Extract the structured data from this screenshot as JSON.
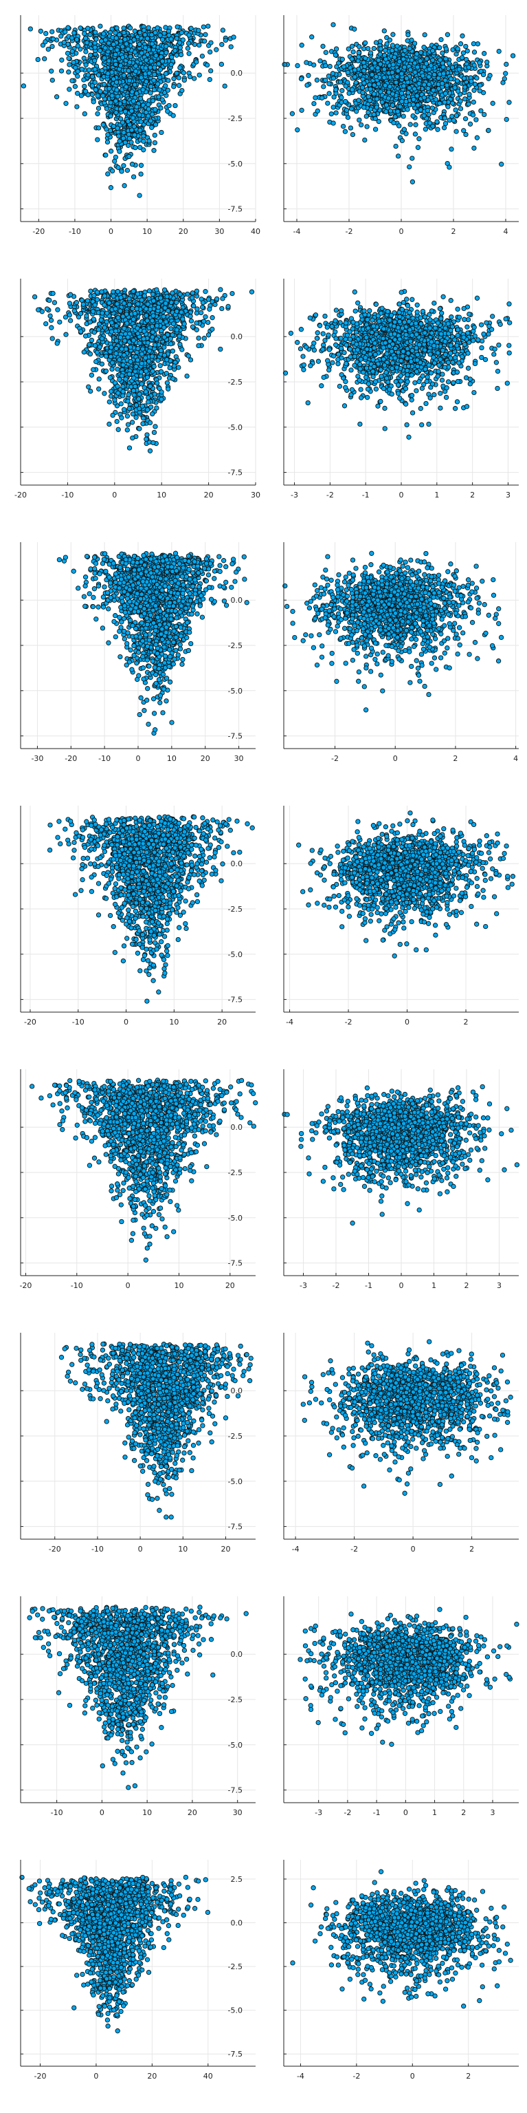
{
  "chart_data": [
    {
      "type": "scatter",
      "marker_color": "#00a8f0",
      "grid": true,
      "xlim": [
        -25,
        40
      ],
      "ylim": [
        -8.2,
        3.2
      ],
      "xticks": [
        -20,
        -10,
        0,
        10,
        20,
        30,
        40
      ],
      "yticks": [
        -7.5,
        -5.0,
        -2.5,
        0.0
      ],
      "ytick_labels_visible": false,
      "dist": "funnel",
      "center": 5,
      "spread": 13,
      "n": 1400
    },
    {
      "type": "scatter",
      "marker_color": "#00a8f0",
      "grid": true,
      "xlim": [
        -4.5,
        4.5
      ],
      "ylim": [
        -8.2,
        3.2
      ],
      "xticks": [
        -4,
        -2,
        0,
        2,
        4
      ],
      "yticks": [
        -7.5,
        -5.0,
        -2.5,
        0.0
      ],
      "ytick_labels": [
        "-7.5",
        "-5.0",
        "-2.5",
        "0.0"
      ],
      "dist": "blob",
      "center": 0,
      "spread": 1.6,
      "n": 1400
    },
    {
      "type": "scatter",
      "marker_color": "#00a8f0",
      "grid": true,
      "xlim": [
        -20,
        30
      ],
      "ylim": [
        -8.2,
        3.2
      ],
      "xticks": [
        -20,
        -10,
        0,
        10,
        20,
        30
      ],
      "yticks": [
        -7.5,
        -5.0,
        -2.5,
        0.0
      ],
      "ytick_labels_visible": false,
      "dist": "funnel",
      "center": 5,
      "spread": 10,
      "n": 1400
    },
    {
      "type": "scatter",
      "marker_color": "#00a8f0",
      "grid": true,
      "xlim": [
        -3.3,
        3.3
      ],
      "ylim": [
        -8.2,
        3.2
      ],
      "xticks": [
        -3,
        -2,
        -1,
        0,
        1,
        2,
        3
      ],
      "yticks": [
        -7.5,
        -5.0,
        -2.5,
        0.0
      ],
      "ytick_labels": [
        "-7.5",
        "-5.0",
        "-2.5",
        "0.0"
      ],
      "dist": "blob",
      "center": 0,
      "spread": 1.2,
      "n": 1400
    },
    {
      "type": "scatter",
      "marker_color": "#00a8f0",
      "grid": true,
      "xlim": [
        -35,
        35
      ],
      "ylim": [
        -8.2,
        3.2
      ],
      "xticks": [
        -30,
        -20,
        -10,
        0,
        10,
        20,
        30
      ],
      "yticks": [
        -7.5,
        -5.0,
        -2.5,
        0.0
      ],
      "ytick_labels_visible": false,
      "dist": "funnel",
      "center": 5,
      "spread": 12,
      "n": 1400
    },
    {
      "type": "scatter",
      "marker_color": "#00a8f0",
      "grid": true,
      "xlim": [
        -3.7,
        4.1
      ],
      "ylim": [
        -8.2,
        3.2
      ],
      "xticks": [
        -2,
        0,
        2,
        4
      ],
      "yticks": [
        -7.5,
        -5.0,
        -2.5,
        0.0
      ],
      "ytick_labels": [
        "-7.5",
        "-5.0",
        "-2.5",
        "0.0"
      ],
      "dist": "blob",
      "center": 0,
      "spread": 1.3,
      "n": 1400
    },
    {
      "type": "scatter",
      "marker_color": "#00a8f0",
      "grid": true,
      "xlim": [
        -22,
        27
      ],
      "ylim": [
        -8.2,
        3.2
      ],
      "xticks": [
        -20,
        -10,
        0,
        10,
        20
      ],
      "yticks": [
        -7.5,
        -5.0,
        -2.5,
        0.0
      ],
      "ytick_labels_visible": false,
      "dist": "funnel",
      "center": 5,
      "spread": 10,
      "n": 1400
    },
    {
      "type": "scatter",
      "marker_color": "#00a8f0",
      "grid": true,
      "xlim": [
        -4.2,
        3.8
      ],
      "ylim": [
        -8.2,
        3.2
      ],
      "xticks": [
        -4,
        -2,
        0,
        2
      ],
      "yticks": [
        -7.5,
        -5.0,
        -2.5,
        0.0
      ],
      "ytick_labels": [
        "-7.5",
        "-5.0",
        "-2.5",
        "0.0"
      ],
      "dist": "blob",
      "center": 0,
      "spread": 1.4,
      "n": 1400
    },
    {
      "type": "scatter",
      "marker_color": "#00a8f0",
      "grid": true,
      "xlim": [
        -21,
        25
      ],
      "ylim": [
        -8.2,
        3.2
      ],
      "xticks": [
        -20,
        -10,
        0,
        10,
        20
      ],
      "yticks": [
        -7.5,
        -5.0,
        -2.5,
        0.0
      ],
      "ytick_labels_visible": false,
      "dist": "funnel",
      "center": 4,
      "spread": 10,
      "n": 1400
    },
    {
      "type": "scatter",
      "marker_color": "#00a8f0",
      "grid": true,
      "xlim": [
        -3.6,
        3.6
      ],
      "ylim": [
        -8.2,
        3.2
      ],
      "xticks": [
        -3,
        -2,
        -1,
        0,
        1,
        2,
        3
      ],
      "yticks": [
        -7.5,
        -5.0,
        -2.5,
        0.0
      ],
      "ytick_labels": [
        "-7.5",
        "-5.0",
        "-2.5",
        "0.0"
      ],
      "dist": "blob",
      "center": 0,
      "spread": 1.2,
      "n": 1400
    },
    {
      "type": "scatter",
      "marker_color": "#00a8f0",
      "grid": true,
      "xlim": [
        -28,
        27
      ],
      "ylim": [
        -8.2,
        3.2
      ],
      "xticks": [
        -20,
        -10,
        0,
        10,
        20
      ],
      "yticks": [
        -7.5,
        -5.0,
        -2.5,
        0.0
      ],
      "ytick_labels_visible": false,
      "dist": "funnel",
      "center": 5,
      "spread": 11,
      "n": 1400
    },
    {
      "type": "scatter",
      "marker_color": "#00a8f0",
      "grid": true,
      "xlim": [
        -4.4,
        3.6
      ],
      "ylim": [
        -8.2,
        3.2
      ],
      "xticks": [
        -4,
        -2,
        0,
        2
      ],
      "yticks": [
        -7.5,
        -5.0,
        -2.5,
        0.0
      ],
      "ytick_labels": [
        "-7.5",
        "-5.0",
        "-2.5",
        "0.0"
      ],
      "dist": "blob",
      "center": 0,
      "spread": 1.4,
      "n": 1400
    },
    {
      "type": "scatter",
      "marker_color": "#00a8f0",
      "grid": true,
      "xlim": [
        -18,
        34
      ],
      "ylim": [
        -8.2,
        3.2
      ],
      "xticks": [
        -10,
        0,
        10,
        20,
        30
      ],
      "yticks": [
        -7.5,
        -5.0,
        -2.5,
        0.0
      ],
      "ytick_labels_visible": false,
      "dist": "funnel",
      "center": 5,
      "spread": 11,
      "n": 1400
    },
    {
      "type": "scatter",
      "marker_color": "#00a8f0",
      "grid": true,
      "xlim": [
        -4.2,
        3.9
      ],
      "ylim": [
        -8.2,
        3.2
      ],
      "xticks": [
        -3,
        -2,
        -1,
        0,
        1,
        2,
        3
      ],
      "yticks": [
        -7.5,
        -5.0,
        -2.5,
        0.0
      ],
      "ytick_labels": [
        "-7.5",
        "-5.0",
        "-2.5",
        "0.0"
      ],
      "dist": "blob",
      "center": 0,
      "spread": 1.4,
      "n": 1400
    },
    {
      "type": "scatter",
      "marker_color": "#00a8f0",
      "grid": true,
      "xlim": [
        -27,
        57
      ],
      "ylim": [
        -8.2,
        3.6
      ],
      "xticks": [
        -20,
        0,
        20,
        40
      ],
      "yticks": [
        -7.5,
        -5.0,
        -2.5,
        0.0,
        2.5
      ],
      "ytick_labels_visible": false,
      "dist": "funnel",
      "center": 5,
      "spread": 15,
      "n": 1400
    },
    {
      "type": "scatter",
      "marker_color": "#00a8f0",
      "grid": true,
      "xlim": [
        -4.6,
        3.8
      ],
      "ylim": [
        -8.2,
        3.6
      ],
      "xticks": [
        -4,
        -2,
        0,
        2
      ],
      "yticks": [
        -7.5,
        -5.0,
        -2.5,
        0.0,
        2.5
      ],
      "ytick_labels": [
        "-7.5",
        "-5.0",
        "-2.5",
        "0.0",
        "2.5"
      ],
      "dist": "blob",
      "center": 0,
      "spread": 1.4,
      "n": 1400
    }
  ]
}
